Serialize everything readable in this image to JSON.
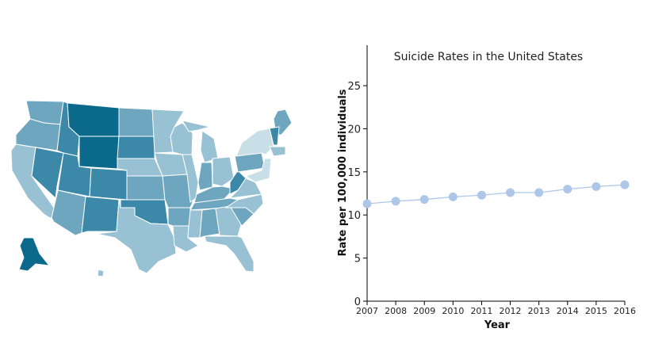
{
  "map": {
    "colors": {
      "darkest": "#0b6a8c",
      "dark": "#3b88a8",
      "mid": "#6ea5bf",
      "light": "#98c2d3",
      "lightest": "#c9dfe8"
    }
  },
  "chart_data": {
    "type": "line",
    "title": "Suicide Rates in the United States",
    "xlabel": "Year",
    "ylabel": "Rate per 100,000 individuals",
    "x": [
      2007,
      2008,
      2009,
      2010,
      2011,
      2012,
      2013,
      2014,
      2015,
      2016
    ],
    "values": [
      11.3,
      11.6,
      11.8,
      12.1,
      12.3,
      12.6,
      12.6,
      13.0,
      13.3,
      13.5
    ],
    "yticks": [
      0,
      5,
      10,
      15,
      20,
      25
    ],
    "ylim": [
      0,
      29.7
    ],
    "grid": false,
    "color": "#aec7e8"
  }
}
